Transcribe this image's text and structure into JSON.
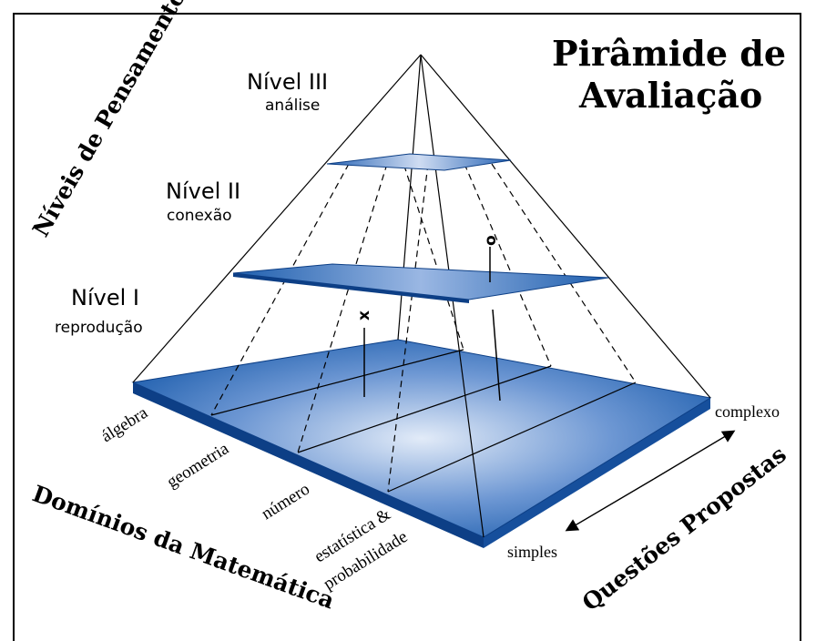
{
  "title": {
    "line1": "Pirâmide de",
    "line2": "Avaliação"
  },
  "axes": {
    "thinking_levels": "Níveis de Pensamento",
    "math_domains": "Domínios da Matemática",
    "questions": "Questões Propostas"
  },
  "levels": [
    {
      "name": "Nível III",
      "desc": "análise"
    },
    {
      "name": "Nível II",
      "desc": "conexão"
    },
    {
      "name": "Nível I",
      "desc": "reprodução"
    }
  ],
  "domains": [
    "álgebra",
    "geometria",
    "número",
    "estatística &",
    "probabilidade"
  ],
  "difficulty": {
    "high": "complexo",
    "low": "simples"
  },
  "markers": {
    "x": "x",
    "o": "o"
  },
  "colors": {
    "base": "#1f5fae",
    "base_light": "#d6e3f5",
    "edge": "#0d3f86"
  }
}
